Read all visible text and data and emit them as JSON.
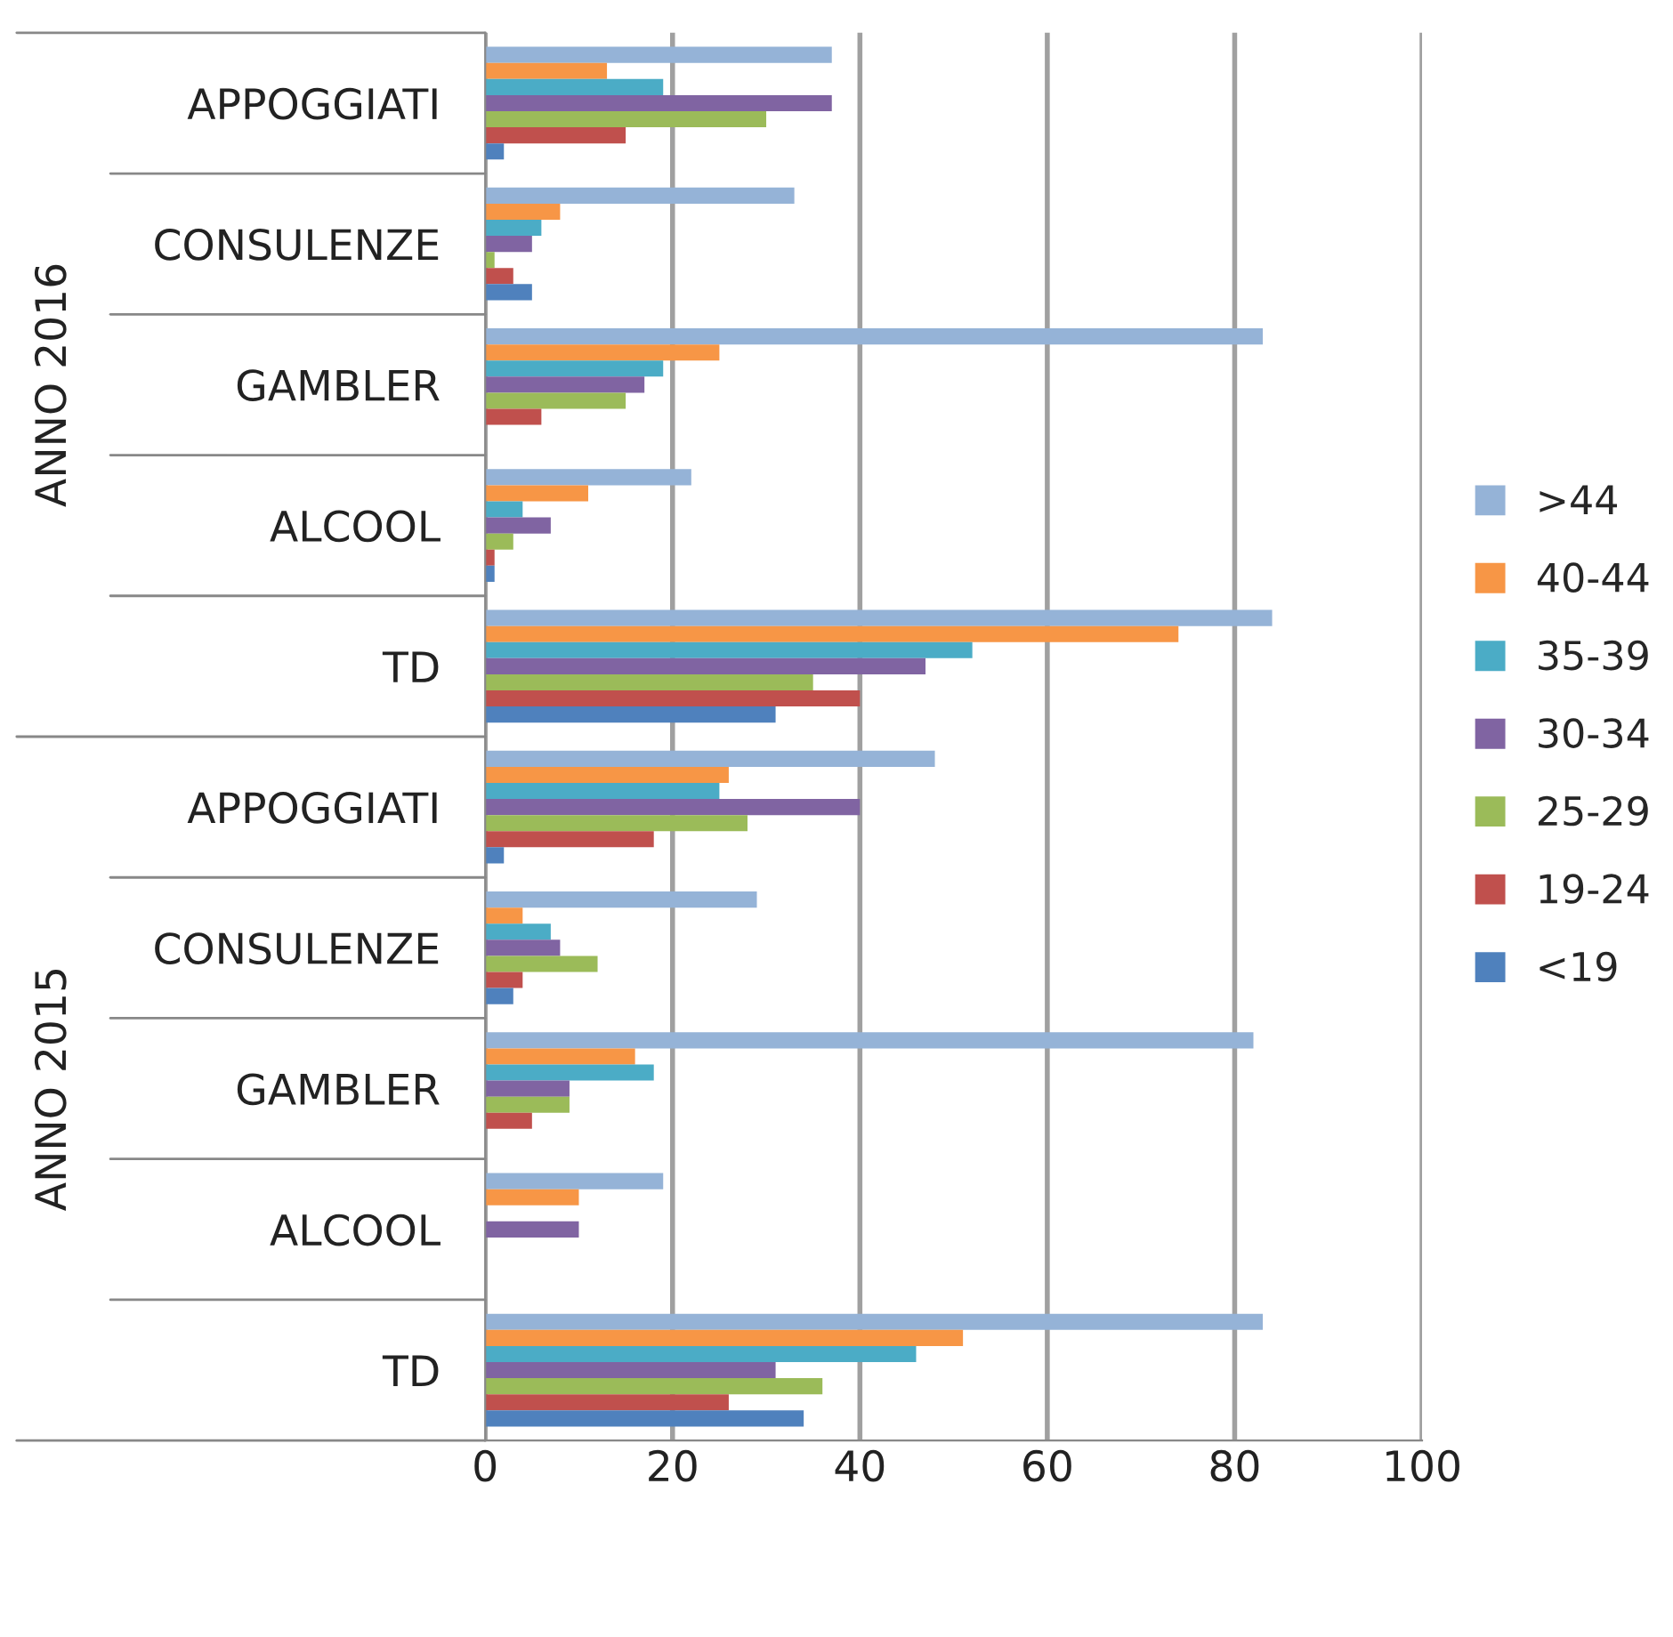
{
  "chart_data": {
    "type": "bar",
    "orientation": "horizontal",
    "categories": [
      "APPOGGIATI",
      "CONSULENZE",
      "GAMBLER",
      "ALCOOL",
      "TD",
      "APPOGGIATI",
      "CONSULENZE",
      "GAMBLER",
      "ALCOOL",
      "TD"
    ],
    "annotations": [
      "ANNO 2016",
      "ANNO 2015"
    ],
    "series": [
      {
        "name": ">44",
        "color": "#95b3d7",
        "values": [
          37,
          33,
          83,
          22,
          84,
          48,
          29,
          82,
          19,
          83
        ]
      },
      {
        "name": "40-44",
        "color": "#f79646",
        "values": [
          13,
          8,
          25,
          11,
          74,
          26,
          4,
          16,
          10,
          51
        ]
      },
      {
        "name": "35-39",
        "color": "#4bacc6",
        "values": [
          19,
          6,
          19,
          4,
          52,
          25,
          7,
          18,
          0,
          46
        ]
      },
      {
        "name": "30-34",
        "color": "#8064a2",
        "values": [
          37,
          5,
          17,
          7,
          47,
          40,
          8,
          9,
          10,
          31
        ]
      },
      {
        "name": "25-29",
        "color": "#9bbb59",
        "values": [
          30,
          1,
          15,
          3,
          35,
          28,
          12,
          9,
          0,
          36
        ]
      },
      {
        "name": "19-24",
        "color": "#c0504d",
        "values": [
          15,
          3,
          6,
          1,
          40,
          18,
          4,
          5,
          0,
          26
        ]
      },
      {
        "name": "<19",
        "color": "#4f81bd",
        "values": [
          2,
          5,
          0,
          1,
          31,
          2,
          3,
          0,
          0,
          34
        ]
      }
    ],
    "xlim": [
      0,
      100
    ],
    "xticks": [
      0,
      20,
      40,
      60,
      80,
      100
    ],
    "grid": "x",
    "legend": "right"
  }
}
